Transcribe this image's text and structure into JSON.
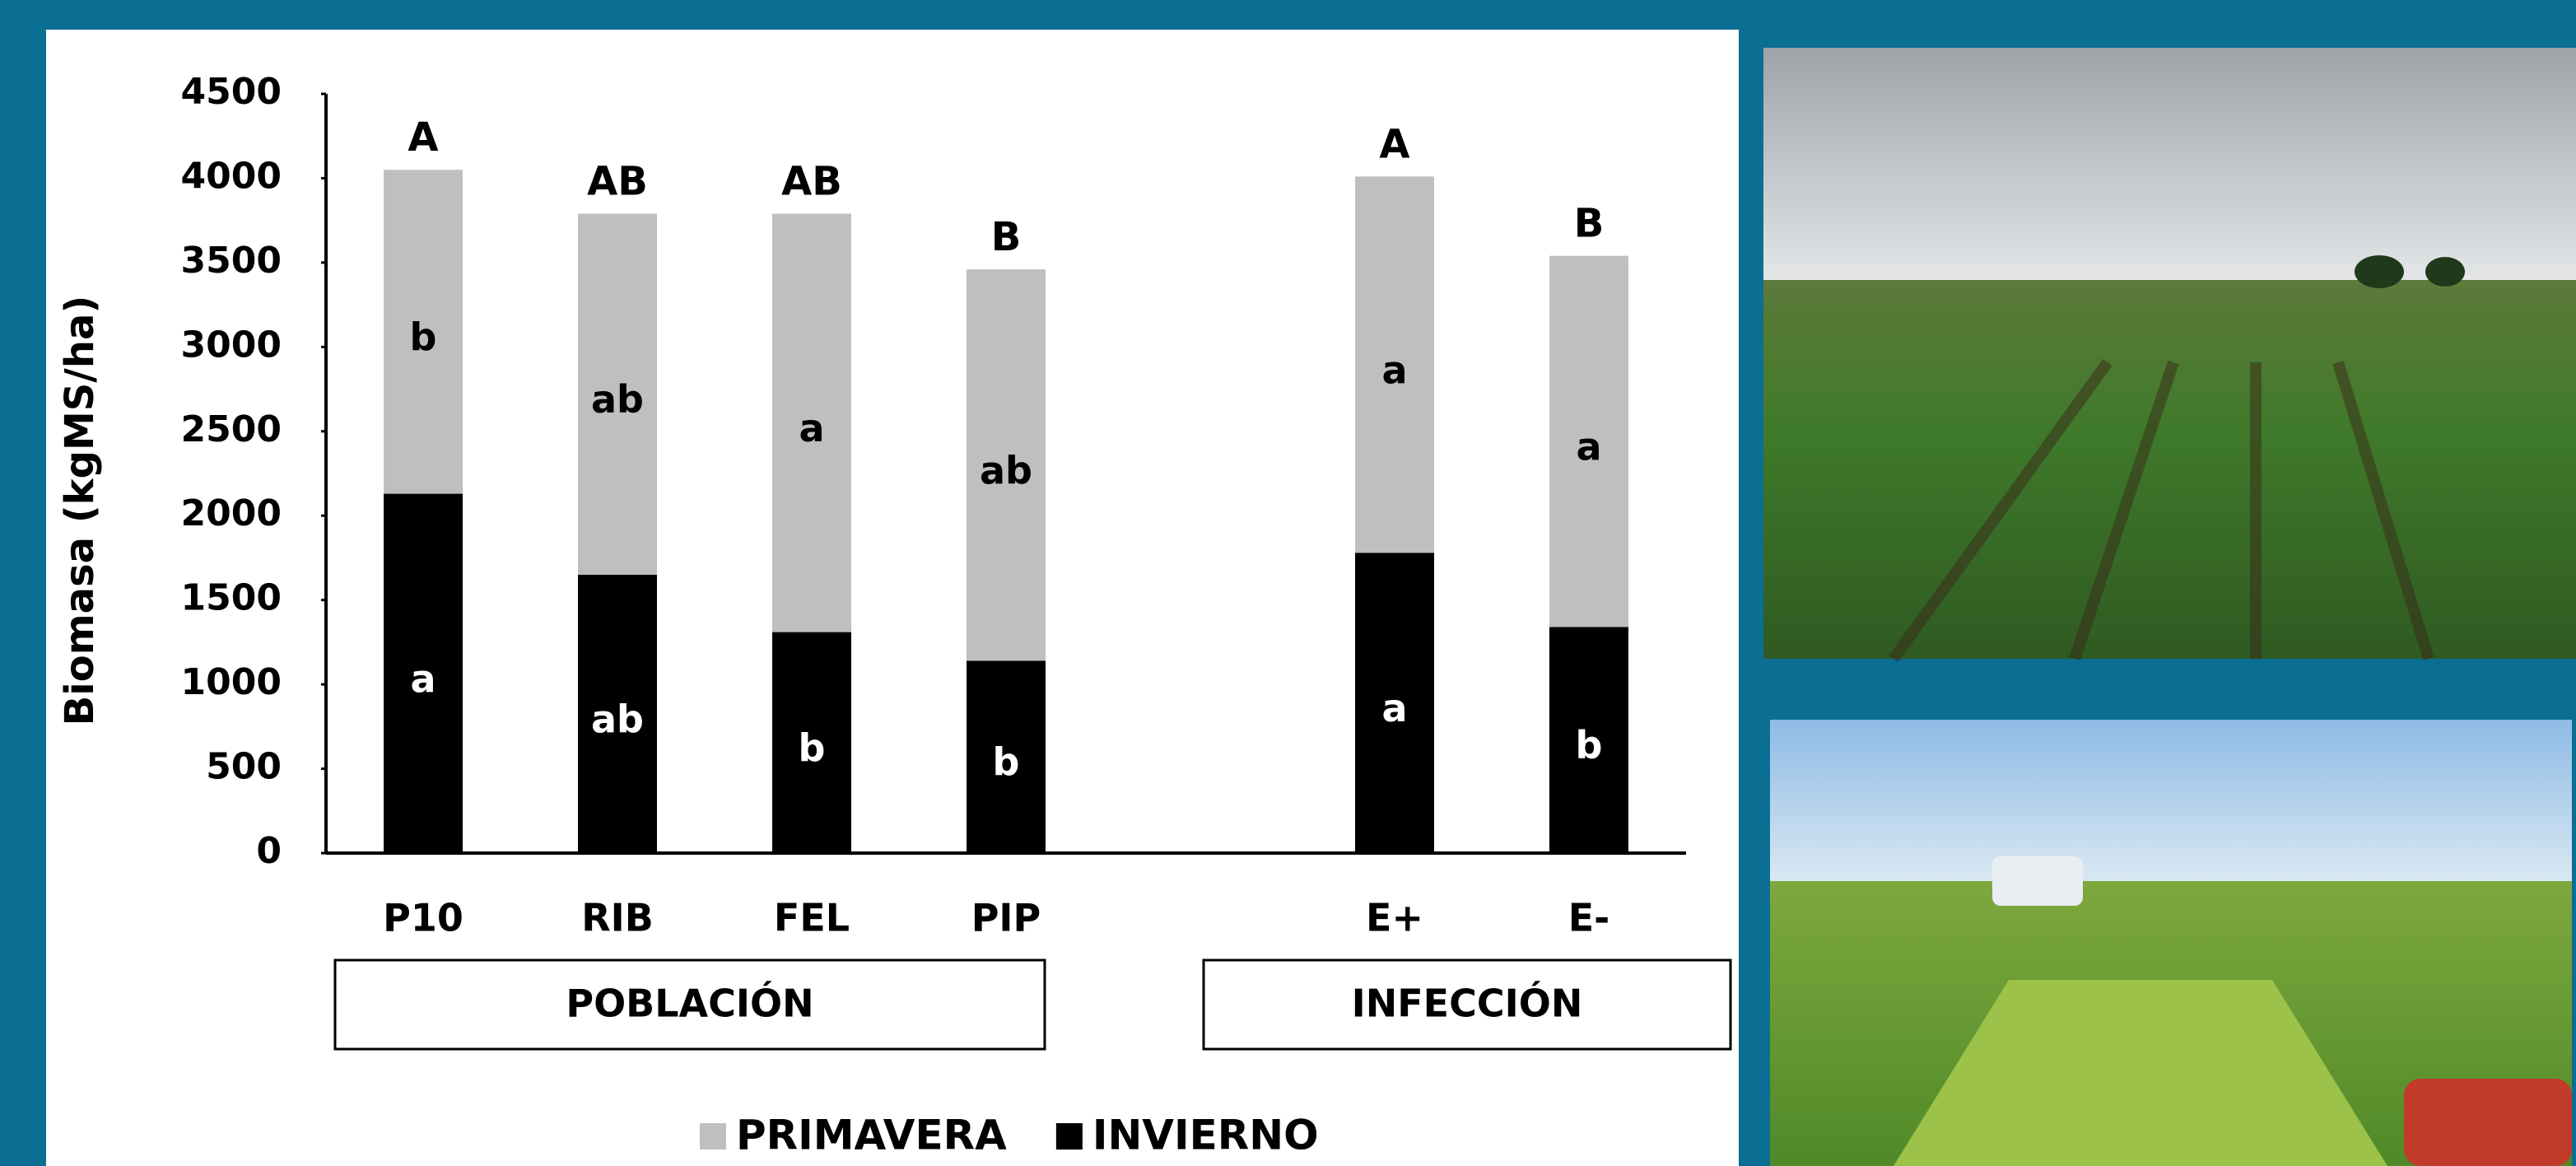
{
  "chart_data": {
    "type": "stacked_bar",
    "y_label": "Biomasa (kgMS/ha)",
    "categories": [
      "P10",
      "RIB",
      "FEL",
      "PIP",
      null,
      "E+",
      "E-"
    ],
    "series": [
      {
        "name": "INVIERNO",
        "color": "#000000",
        "text_color": "#ffffff",
        "values": [
          2130,
          1650,
          1310,
          1140,
          null,
          1780,
          1340
        ],
        "letters": [
          "a",
          "ab",
          "b",
          "b",
          null,
          "a",
          "b"
        ]
      },
      {
        "name": "PRIMAVERA",
        "color": "#bfbfbf",
        "text_color": "#000000",
        "values": [
          1920,
          2140,
          2480,
          2320,
          null,
          2230,
          2200
        ],
        "letters": [
          "b",
          "ab",
          "a",
          "ab",
          null,
          "a",
          "a"
        ]
      }
    ],
    "total_letters": [
      "A",
      "AB",
      "AB",
      "B",
      null,
      "A",
      "B"
    ],
    "groups": [
      {
        "label": "POBLACIÓN",
        "categories": [
          "P10",
          "RIB",
          "FEL",
          "PIP"
        ]
      },
      {
        "label": "INFECCIÓN",
        "categories": [
          "E+",
          "E-"
        ]
      }
    ],
    "ylim": [
      0,
      4500
    ],
    "yticks": [
      0,
      500,
      1000,
      1500,
      2000,
      2500,
      3000,
      3500,
      4000,
      4500
    ],
    "grid": false
  }
}
